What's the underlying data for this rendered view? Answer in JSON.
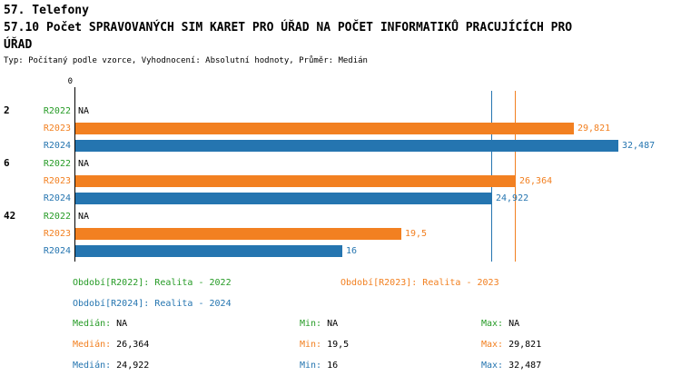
{
  "title": "57. Telefony",
  "subtitle": "57.10 Počet SPRAVOVANÝCH SIM KARET PRO ÚŘAD NA POČET INFORMATIKŮ PRACUJÍCÍCH PRO",
  "subtitle2": "ÚŘAD",
  "meta": "Typ: Počítaný podle vzorce, Vyhodnocení: Absolutní hodnoty, Průměr: Medián",
  "colors": {
    "R2022": "#269B26",
    "R2023": "#F28021",
    "R2024": "#2575B0",
    "axis": "#000000"
  },
  "chart_data": {
    "type": "bar",
    "orientation": "horizontal",
    "x_axis": {
      "origin_label": "0",
      "min": 0,
      "max": 36.3
    },
    "series_names": [
      "R2022",
      "R2023",
      "R2024"
    ],
    "groups": [
      {
        "label": "2",
        "rows": [
          {
            "series": "R2022",
            "value": null,
            "display": "NA"
          },
          {
            "series": "R2023",
            "value": 29.821,
            "display": "29,821"
          },
          {
            "series": "R2024",
            "value": 32.487,
            "display": "32,487"
          }
        ]
      },
      {
        "label": "6",
        "rows": [
          {
            "series": "R2022",
            "value": null,
            "display": "NA"
          },
          {
            "series": "R2023",
            "value": 26.364,
            "display": "26,364"
          },
          {
            "series": "R2024",
            "value": 24.922,
            "display": "24,922"
          }
        ]
      },
      {
        "label": "42",
        "rows": [
          {
            "series": "R2022",
            "value": null,
            "display": "NA"
          },
          {
            "series": "R2023",
            "value": 19.5,
            "display": "19,5"
          },
          {
            "series": "R2024",
            "value": 16,
            "display": "16"
          }
        ]
      }
    ],
    "reference_lines": [
      {
        "series": "R2023",
        "value": 26.364
      },
      {
        "series": "R2024",
        "value": 24.922
      }
    ]
  },
  "legend": [
    {
      "series": "R2022",
      "text": "Období[R2022]: Realita - 2022"
    },
    {
      "series": "R2023",
      "text": "Období[R2023]: Realita - 2023"
    },
    {
      "series": "R2024",
      "text": "Období[R2024]: Realita - 2024"
    }
  ],
  "stats": [
    {
      "series": "R2022",
      "items": [
        {
          "label": "Medián:",
          "value": "NA"
        },
        {
          "label": "Min:",
          "value": "NA"
        },
        {
          "label": "Max:",
          "value": "NA"
        }
      ]
    },
    {
      "series": "R2023",
      "items": [
        {
          "label": "Medián:",
          "value": "26,364"
        },
        {
          "label": "Min:",
          "value": "19,5"
        },
        {
          "label": "Max:",
          "value": "29,821"
        }
      ]
    },
    {
      "series": "R2024",
      "items": [
        {
          "label": "Medián:",
          "value": "24,922"
        },
        {
          "label": "Min:",
          "value": "16"
        },
        {
          "label": "Max:",
          "value": "32,487"
        }
      ]
    }
  ]
}
